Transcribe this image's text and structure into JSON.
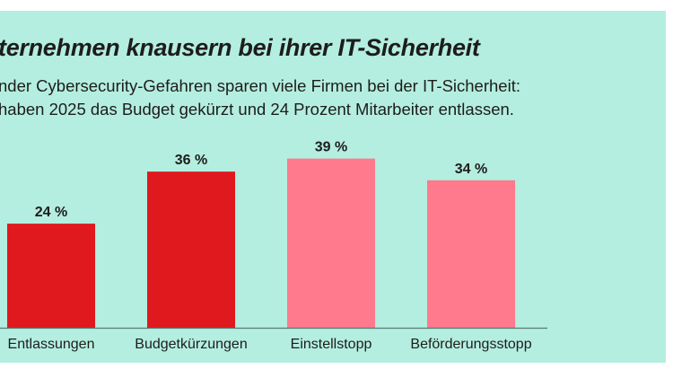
{
  "chart_data": {
    "type": "bar",
    "title": "ternehmen knausern bei ihrer IT-Sicherheit",
    "subtitle": [
      "nder Cybersecurity-Gefahren sparen viele Firmen bei der IT-Sicherheit:",
      "haben 2025 das Budget gekürzt und 24 Prozent Mitarbeiter entlassen."
    ],
    "categories": [
      "Entlassungen",
      "Budgetkürzungen",
      "Einstellstopp",
      "Beförderungsstopp"
    ],
    "values": [
      24,
      36,
      39,
      34
    ],
    "value_labels": [
      "24 %",
      "36 %",
      "39 %",
      "34 %"
    ],
    "colors": [
      "#e0191f",
      "#e0191f",
      "#ff7a8c",
      "#ff7a8c"
    ],
    "background": "#b4eee0",
    "xlabel": "",
    "ylabel": "",
    "ylim": [
      0,
      40
    ],
    "grid": false
  }
}
